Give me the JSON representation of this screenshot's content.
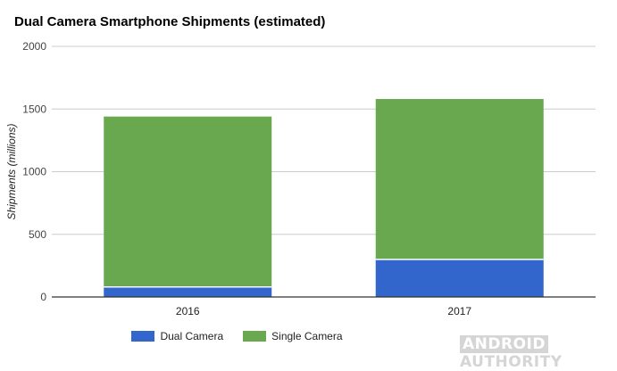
{
  "chart_data": {
    "type": "bar",
    "stacked": true,
    "title": "Dual Camera Smartphone Shipments (estimated)",
    "xlabel": "",
    "ylabel": "Shipments (millions)",
    "ylim": [
      0,
      2000
    ],
    "yticks": [
      "0",
      "500",
      "1000",
      "1500",
      "2000"
    ],
    "categories": [
      "2016",
      "2017"
    ],
    "series": [
      {
        "name": "Dual Camera",
        "values": [
          80,
          300
        ],
        "color": "#3366cc"
      },
      {
        "name": "Single Camera",
        "values": [
          1360,
          1280
        ],
        "color": "#6aa84f"
      }
    ],
    "grid": true,
    "legend": "bottom"
  },
  "watermark": {
    "part1": "ANDROID",
    "part2": "AUTHORITY"
  }
}
